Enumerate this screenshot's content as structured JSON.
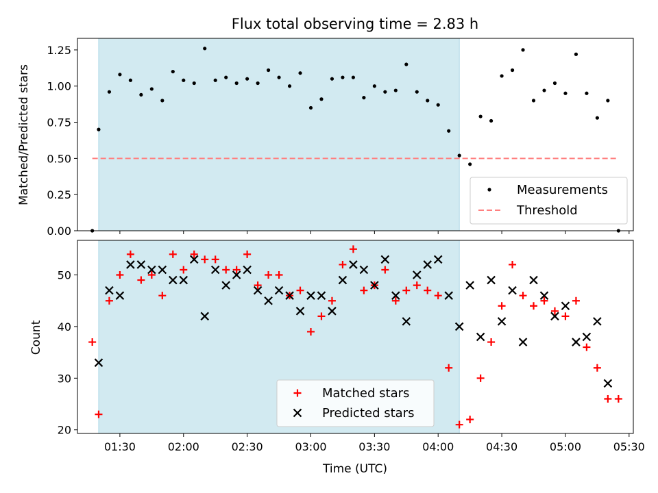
{
  "chart_data": [
    {
      "type": "scatter",
      "panel": "top",
      "title": "Flux total observing time = 2.83 h",
      "ylabel": "Matched/Predicted stars",
      "ylim": [
        0,
        1.33
      ],
      "yticks": [
        "0.00",
        "0.25",
        "0.50",
        "0.75",
        "1.00",
        "1.25"
      ],
      "yticks_values": [
        0,
        0.25,
        0.5,
        0.75,
        1.0,
        1.25
      ],
      "x_axis_unit": "UTC time",
      "xlim": [
        "01:10",
        "05:32"
      ],
      "shaded_region": {
        "from": "01:20",
        "to": "04:10",
        "color": "#add8e6"
      },
      "legend": {
        "position": "lower right",
        "entries": [
          "Measurements",
          "Threshold"
        ]
      },
      "series": [
        {
          "name": "Measurements",
          "marker": "dot",
          "color": "#000000",
          "x": [
            "01:17",
            "01:20",
            "01:25",
            "01:30",
            "01:35",
            "01:40",
            "01:45",
            "01:50",
            "01:55",
            "02:00",
            "02:05",
            "02:10",
            "02:15",
            "02:20",
            "02:25",
            "02:30",
            "02:35",
            "02:40",
            "02:45",
            "02:50",
            "02:55",
            "03:00",
            "03:05",
            "03:10",
            "03:15",
            "03:20",
            "03:25",
            "03:30",
            "03:35",
            "03:40",
            "03:45",
            "03:50",
            "03:55",
            "04:00",
            "04:05",
            "04:10",
            "04:15",
            "04:20",
            "04:25",
            "04:30",
            "04:35",
            "04:40",
            "04:45",
            "04:50",
            "04:55",
            "05:00",
            "05:05",
            "05:10",
            "05:15",
            "05:20",
            "05:25"
          ],
          "y": [
            0.0,
            0.7,
            0.96,
            1.08,
            1.04,
            0.94,
            0.98,
            0.9,
            1.1,
            1.04,
            1.02,
            1.26,
            1.04,
            1.06,
            1.02,
            1.05,
            1.02,
            1.11,
            1.06,
            1.0,
            1.09,
            0.85,
            0.91,
            1.05,
            1.06,
            1.06,
            0.92,
            1.0,
            0.96,
            0.97,
            1.15,
            0.96,
            0.9,
            0.87,
            0.69,
            0.52,
            0.46,
            0.79,
            0.76,
            1.07,
            1.11,
            1.25,
            0.9,
            0.97,
            1.02,
            0.95,
            1.22,
            0.95,
            0.78,
            0.9,
            0.0
          ]
        },
        {
          "name": "Threshold",
          "marker": "dashed-line",
          "color": "#ff7f7f",
          "x": [
            "01:17",
            "05:25"
          ],
          "y": [
            0.5,
            0.5
          ]
        }
      ]
    },
    {
      "type": "scatter",
      "panel": "bottom",
      "xlabel": "Time (UTC)",
      "ylabel": "Count",
      "ylim": [
        19.3,
        56.7
      ],
      "yticks": [
        "20",
        "30",
        "40",
        "50"
      ],
      "yticks_values": [
        20,
        30,
        40,
        50
      ],
      "xticks": [
        "01:30",
        "02:00",
        "02:30",
        "03:00",
        "03:30",
        "04:00",
        "04:30",
        "05:00",
        "05:30"
      ],
      "xlim": [
        "01:10",
        "05:32"
      ],
      "shaded_region": {
        "from": "01:20",
        "to": "04:10",
        "color": "#add8e6"
      },
      "legend": {
        "position": "lower center",
        "entries": [
          "Matched stars",
          "Predicted stars"
        ]
      },
      "series": [
        {
          "name": "Matched stars",
          "marker": "plus",
          "color": "#ff0000",
          "x": [
            "01:17",
            "01:20",
            "01:25",
            "01:30",
            "01:35",
            "01:40",
            "01:45",
            "01:50",
            "01:55",
            "02:00",
            "02:05",
            "02:10",
            "02:15",
            "02:20",
            "02:25",
            "02:30",
            "02:35",
            "02:40",
            "02:45",
            "02:50",
            "02:55",
            "03:00",
            "03:05",
            "03:10",
            "03:15",
            "03:20",
            "03:25",
            "03:30",
            "03:35",
            "03:40",
            "03:45",
            "03:50",
            "03:55",
            "04:00",
            "04:05",
            "04:10",
            "04:15",
            "04:20",
            "04:25",
            "04:30",
            "04:35",
            "04:40",
            "04:45",
            "04:50",
            "04:55",
            "05:00",
            "05:05",
            "05:10",
            "05:15",
            "05:20",
            "05:25"
          ],
          "y": [
            37,
            23,
            45,
            50,
            54,
            49,
            50,
            46,
            54,
            51,
            54,
            53,
            53,
            51,
            51,
            54,
            48,
            50,
            50,
            46,
            47,
            39,
            42,
            45,
            52,
            55,
            47,
            48,
            51,
            45,
            47,
            48,
            47,
            46,
            32,
            21,
            22,
            30,
            37,
            44,
            52,
            46,
            44,
            45,
            43,
            42,
            45,
            36,
            32,
            26,
            26
          ]
        },
        {
          "name": "Predicted stars",
          "marker": "x",
          "color": "#000000",
          "x": [
            "01:20",
            "01:25",
            "01:30",
            "01:35",
            "01:40",
            "01:45",
            "01:50",
            "01:55",
            "02:00",
            "02:05",
            "02:10",
            "02:15",
            "02:20",
            "02:25",
            "02:30",
            "02:35",
            "02:40",
            "02:45",
            "02:50",
            "02:55",
            "03:00",
            "03:05",
            "03:10",
            "03:15",
            "03:20",
            "03:25",
            "03:30",
            "03:35",
            "03:40",
            "03:45",
            "03:50",
            "03:55",
            "04:00",
            "04:05",
            "04:10",
            "04:15",
            "04:20",
            "04:25",
            "04:30",
            "04:35",
            "04:40",
            "04:45",
            "04:50",
            "04:55",
            "05:00",
            "05:05",
            "05:10",
            "05:15",
            "05:20"
          ],
          "y": [
            33,
            47,
            46,
            52,
            52,
            51,
            51,
            49,
            49,
            53,
            42,
            51,
            48,
            50,
            51,
            47,
            45,
            47,
            46,
            43,
            46,
            46,
            43,
            49,
            52,
            51,
            48,
            53,
            46,
            41,
            50,
            52,
            53,
            46,
            40,
            48,
            38,
            49,
            41,
            47,
            37,
            49,
            46,
            42,
            44,
            37,
            38,
            41,
            29
          ]
        }
      ]
    }
  ]
}
